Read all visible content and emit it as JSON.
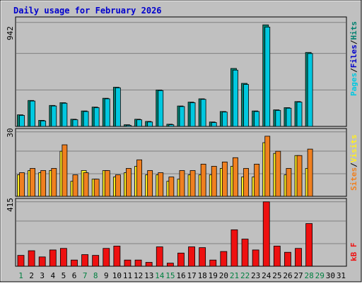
{
  "colors": {
    "background": "#c0c0c0",
    "plot_background": "#c0c0c0",
    "grid": "#808080",
    "title": "#0000cc",
    "hits": "#00c8e0",
    "hits_dark": "#006050",
    "files": "#0000cc",
    "pages": "#008070",
    "visits": "#f08020",
    "sites": "#ffee22",
    "kb": "#ee1010",
    "axis_text": "#000000",
    "weekend_day": "#008040"
  },
  "chart_data": [
    {
      "type": "bar",
      "title": "Daily usage for February 2026",
      "panel": "hits-files-pages",
      "ymax_label": "942",
      "ylim": [
        0,
        942
      ],
      "legend": [
        "Pages",
        "Files",
        "Hits"
      ],
      "legend_separator": "/",
      "categories": [
        "1",
        "2",
        "3",
        "4",
        "5",
        "6",
        "7",
        "8",
        "9",
        "10",
        "11",
        "12",
        "13",
        "14",
        "15",
        "16",
        "17",
        "18",
        "19",
        "20",
        "21",
        "22",
        "23",
        "24",
        "25",
        "26",
        "27",
        "28",
        "29",
        "30",
        "31"
      ],
      "series": [
        {
          "name": "Pages",
          "values": [
            105,
            235,
            55,
            190,
            215,
            65,
            140,
            175,
            255,
            355,
            15,
            65,
            45,
            330,
            20,
            185,
            220,
            250,
            40,
            135,
            525,
            390,
            140,
            920,
            150,
            170,
            225,
            670,
            0,
            0,
            0
          ]
        },
        {
          "name": "Files",
          "values": [
            100,
            230,
            50,
            185,
            210,
            60,
            135,
            170,
            250,
            350,
            10,
            60,
            40,
            325,
            15,
            180,
            215,
            245,
            35,
            130,
            510,
            380,
            135,
            900,
            145,
            165,
            220,
            660,
            0,
            0,
            0
          ]
        },
        {
          "name": "Hits",
          "values": [
            100,
            230,
            50,
            185,
            210,
            60,
            135,
            170,
            250,
            350,
            10,
            60,
            40,
            325,
            15,
            180,
            215,
            245,
            35,
            130,
            510,
            380,
            135,
            900,
            145,
            165,
            220,
            660,
            0,
            0,
            0
          ]
        }
      ]
    },
    {
      "type": "bar",
      "panel": "sites-visits",
      "ymax_label": "30",
      "ylim": [
        0,
        30
      ],
      "legend": [
        "Sites",
        "Visits"
      ],
      "legend_separator": "/",
      "categories": [
        "1",
        "2",
        "3",
        "4",
        "5",
        "6",
        "7",
        "8",
        "9",
        "10",
        "11",
        "12",
        "13",
        "14",
        "15",
        "16",
        "17",
        "18",
        "19",
        "20",
        "21",
        "22",
        "23",
        "24",
        "25",
        "26",
        "27",
        "28",
        "29",
        "30",
        "31"
      ],
      "series": [
        {
          "name": "Sites",
          "values": [
            10,
            12,
            11,
            12,
            21,
            7,
            12,
            8,
            12,
            9,
            11,
            14,
            10,
            10,
            7,
            8,
            10,
            10,
            10,
            13,
            14,
            9,
            9,
            25,
            20,
            10,
            19,
            13,
            0,
            0,
            0
          ]
        },
        {
          "name": "Visits",
          "values": [
            11,
            13,
            12,
            13,
            24,
            10,
            11,
            8,
            12,
            10,
            13,
            17,
            12,
            11,
            9,
            12,
            12,
            15,
            14,
            16,
            18,
            13,
            15,
            28,
            21,
            13,
            19,
            22,
            0,
            0,
            0
          ]
        }
      ]
    },
    {
      "type": "bar",
      "panel": "kbytes",
      "ymax_label": "415",
      "ylim": [
        0,
        415
      ],
      "legend": [
        "kB F"
      ],
      "categories": [
        "1",
        "2",
        "3",
        "4",
        "5",
        "6",
        "7",
        "8",
        "9",
        "10",
        "11",
        "12",
        "13",
        "14",
        "15",
        "16",
        "17",
        "18",
        "19",
        "20",
        "21",
        "22",
        "23",
        "24",
        "25",
        "26",
        "27",
        "28",
        "29",
        "30",
        "31"
      ],
      "weekend_days": [
        "1",
        "7",
        "8",
        "14",
        "15",
        "21",
        "22",
        "28",
        "29"
      ],
      "series": [
        {
          "name": "kB F",
          "values": [
            70,
            100,
            60,
            105,
            115,
            40,
            75,
            70,
            115,
            130,
            40,
            40,
            25,
            125,
            20,
            85,
            125,
            120,
            40,
            95,
            235,
            175,
            105,
            415,
            130,
            90,
            115,
            275,
            0,
            0,
            0
          ]
        }
      ]
    }
  ]
}
